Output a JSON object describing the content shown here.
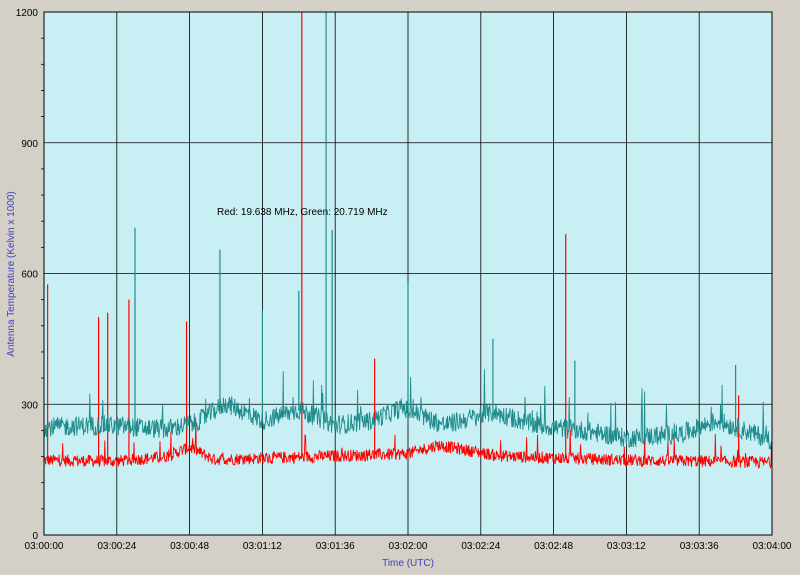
{
  "chart_data": {
    "type": "line",
    "title": "",
    "annotation": "Red: 19.638 MHz, Green: 20.719 MHz",
    "xlabel": "Time (UTC)",
    "ylabel": "Antenna Temperature (Kelvin x 1000)",
    "x_ticks": [
      "03:00:00",
      "03:00:24",
      "03:00:48",
      "03:01:12",
      "03:01:36",
      "03:02:00",
      "03:02:24",
      "03:02:48",
      "03:03:12",
      "03:03:36",
      "03:04:00"
    ],
    "y_ticks": [
      "0",
      "300",
      "600",
      "900",
      "1200"
    ],
    "xlim": [
      "03:00:00",
      "03:04:00"
    ],
    "ylim": [
      0,
      1200
    ],
    "grid": true,
    "background_color": "#c8f0f4",
    "series": [
      {
        "color": "#ff0000",
        "baseline": [
          [
            0,
            170
          ],
          [
            24,
            168
          ],
          [
            40,
            178
          ],
          [
            48,
            200
          ],
          [
            56,
            172
          ],
          [
            72,
            175
          ],
          [
            96,
            180
          ],
          [
            120,
            185
          ],
          [
            130,
            205
          ],
          [
            150,
            180
          ],
          [
            170,
            175
          ],
          [
            192,
            170
          ],
          [
            216,
            168
          ],
          [
            240,
            165
          ]
        ],
        "spikes": [
          [
            1.2,
            575
          ],
          [
            18,
            500
          ],
          [
            21,
            510
          ],
          [
            28,
            540
          ],
          [
            47,
            490
          ],
          [
            85,
            1200
          ],
          [
            109,
            405
          ],
          [
            172,
            690
          ],
          [
            229,
            320
          ]
        ]
      },
      {
        "color": "#208c8c",
        "baseline": [
          [
            0,
            245
          ],
          [
            20,
            250
          ],
          [
            40,
            240
          ],
          [
            50,
            255
          ],
          [
            60,
            300
          ],
          [
            72,
            260
          ],
          [
            84,
            285
          ],
          [
            96,
            250
          ],
          [
            108,
            260
          ],
          [
            118,
            290
          ],
          [
            132,
            250
          ],
          [
            148,
            280
          ],
          [
            162,
            250
          ],
          [
            180,
            235
          ],
          [
            192,
            220
          ],
          [
            210,
            230
          ],
          [
            222,
            260
          ],
          [
            240,
            215
          ]
        ],
        "spikes": [
          [
            30,
            705
          ],
          [
            58,
            655
          ],
          [
            72,
            515
          ],
          [
            84,
            560
          ],
          [
            93,
            1200
          ],
          [
            95,
            700
          ],
          [
            120,
            580
          ],
          [
            148,
            450
          ],
          [
            175,
            400
          ],
          [
            228,
            390
          ]
        ]
      }
    ]
  }
}
